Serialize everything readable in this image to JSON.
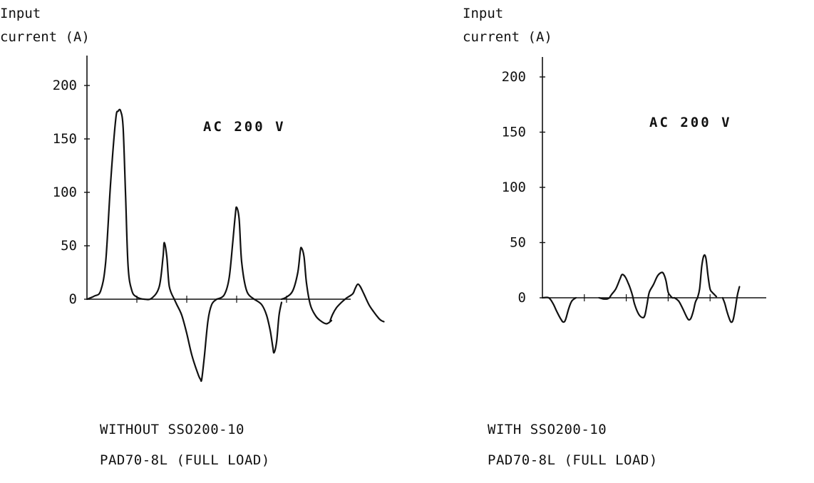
{
  "chart_data": [
    {
      "type": "line",
      "ylabel_line1": "Input",
      "ylabel_line2": "current (A)",
      "yticks": [
        0,
        50,
        100,
        150,
        200
      ],
      "ylim": [
        -65,
        215
      ],
      "xlim": [
        0,
        100
      ],
      "annotation": "AC 200 V",
      "caption_line1": "WITHOUT SSO200-10",
      "caption_line2": "PAD70-8L (FULL LOAD)",
      "x_tick_marks": [
        20,
        40,
        60,
        80
      ],
      "series": [
        {
          "segments": [
            {
              "x": [
                0,
                3,
                5.5,
                7.5,
                9.5,
                11.5,
                12.5,
                13.5,
                14.5,
                15.5,
                16.5,
                18,
                20,
                23,
                26,
                29,
                30.5,
                31,
                32,
                33,
                35
              ],
              "y": [
                0,
                3,
                8,
                35,
                110,
                168,
                176,
                176,
                160,
                95,
                30,
                8,
                2,
                0,
                1,
                12,
                40,
                53,
                40,
                12,
                0
              ]
            },
            {
              "x": [
                35,
                36,
                38,
                40,
                42,
                44.5,
                45.5,
                46,
                47,
                48.5,
                50,
                52
              ],
              "y": [
                0,
                -5,
                -15,
                -32,
                -52,
                -70,
                -75,
                -75,
                -55,
                -20,
                -5,
                0
              ]
            },
            {
              "x": [
                52,
                55,
                57,
                58.5,
                59.5,
                60,
                61,
                62,
                64,
                67
              ],
              "y": [
                0,
                4,
                20,
                55,
                80,
                86,
                75,
                35,
                8,
                0
              ]
            },
            {
              "x": [
                67,
                70,
                72,
                73.5,
                74.5,
                75,
                76,
                77,
                78
              ],
              "y": [
                0,
                -5,
                -15,
                -30,
                -45,
                -50,
                -40,
                -15,
                -3
              ]
            },
            {
              "x": [
                78,
                80,
                82.5,
                84.5,
                85.5,
                86,
                87,
                88,
                89.5,
                91.5,
                93.5,
                96,
                98
              ],
              "y": [
                0,
                2,
                8,
                25,
                45,
                48,
                40,
                15,
                -5,
                -15,
                -20,
                -23,
                -20
              ]
            },
            {
              "x": [
                97.5,
                98.5,
                100,
                102,
                104,
                106.5,
                107.5,
                108.5,
                109.5,
                111,
                113,
                115,
                117,
                118,
                119
              ],
              "y": [
                -20,
                -14,
                -8,
                -3,
                1,
                5,
                10,
                14,
                12,
                5,
                -5,
                -12,
                -18,
                -20,
                -21
              ]
            }
          ]
        }
      ]
    },
    {
      "type": "line",
      "ylabel_line1": "Input",
      "ylabel_line2": "current (A)",
      "yticks": [
        0,
        50,
        100,
        150,
        200
      ],
      "ylim": [
        -65,
        215
      ],
      "xlim": [
        0,
        100
      ],
      "annotation": "AC 200 V",
      "caption_line1": "WITH SSO200-10",
      "caption_line2": "PAD70-8L (FULL LOAD)",
      "x_tick_marks": [
        20,
        40,
        60,
        80
      ],
      "series": [
        {
          "segments": [
            {
              "x": [
                0,
                3,
                5,
                7,
                9,
                10,
                11,
                12.5,
                14,
                16
              ],
              "y": [
                0,
                0,
                -5,
                -13,
                -20,
                -22,
                -20,
                -10,
                -3,
                0
              ]
            },
            {
              "x": [
                27,
                29,
                31,
                32
              ],
              "y": [
                0,
                -1,
                -1,
                0
              ]
            },
            {
              "x": [
                32,
                33,
                35,
                37,
                38,
                39.5,
                41,
                42,
                43,
                44,
                46,
                48,
                49,
                50
              ],
              "y": [
                0,
                3,
                8,
                17,
                21,
                19,
                13,
                8,
                2,
                -6,
                -15,
                -18,
                -15,
                -5
              ]
            },
            {
              "x": [
                50,
                51,
                53,
                55,
                57,
                58,
                59,
                60,
                61,
                62,
                63
              ],
              "y": [
                -5,
                5,
                12,
                20,
                23,
                21,
                15,
                5,
                2,
                0,
                0
              ]
            },
            {
              "x": [
                63,
                65,
                67,
                69,
                70,
                71,
                72,
                73,
                74
              ],
              "y": [
                0,
                -3,
                -10,
                -18,
                -20,
                -18,
                -12,
                -4,
                0
              ]
            },
            {
              "x": [
                74,
                75,
                76,
                77,
                78,
                79,
                80,
                81,
                82,
                83
              ],
              "y": [
                0,
                8,
                28,
                38,
                36,
                20,
                8,
                5,
                3,
                1
              ]
            },
            {
              "x": [
                86,
                87,
                88,
                89,
                90,
                91,
                92,
                93,
                94
              ],
              "y": [
                0,
                -5,
                -12,
                -18,
                -22,
                -20,
                -10,
                2,
                10
              ]
            }
          ]
        }
      ]
    }
  ]
}
